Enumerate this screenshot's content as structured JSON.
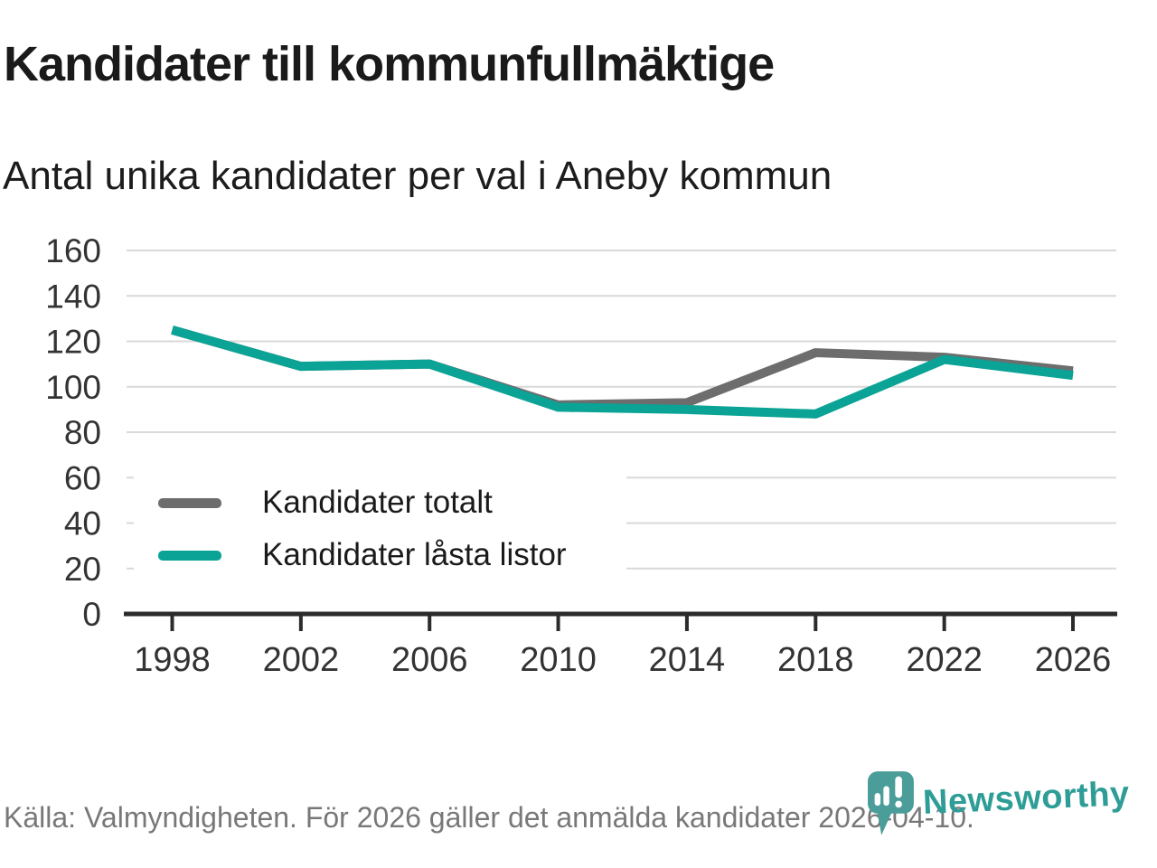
{
  "header": {
    "title": "Kandidater till kommunfullmäktige",
    "subtitle": "Antal unika kandidater per val i Aneby kommun"
  },
  "legend": {
    "items": [
      {
        "label": "Kandidater totalt",
        "color": "#6d6d6d"
      },
      {
        "label": "Kandidater låsta listor",
        "color": "#0aa396"
      }
    ]
  },
  "footer": {
    "source": "Källa: Valmyndigheten. För 2026 gäller det anmälda kandidater 2026-04-10.",
    "brand": "Newsworthy"
  },
  "colors": {
    "total_line": "#6d6d6d",
    "locked_line": "#0aa396",
    "grid": "#d9d9d9",
    "axis": "#2b2b2b",
    "axis_text": "#333333",
    "title_text": "#1a1a1a",
    "muted_text": "#787878",
    "brand_icon": "#4a9d99",
    "brand_text": "#2f9d97"
  },
  "chart_data": {
    "type": "line",
    "title": "Kandidater till kommunfullmäktige",
    "subtitle": "Antal unika kandidater per val i Aneby kommun",
    "x": [
      1998,
      2002,
      2006,
      2010,
      2014,
      2018,
      2022,
      2026
    ],
    "series": [
      {
        "name": "Kandidater totalt",
        "color": "#6d6d6d",
        "values": [
          125,
          109,
          110,
          92,
          93,
          115,
          113,
          107
        ]
      },
      {
        "name": "Kandidater låsta listor",
        "color": "#0aa396",
        "values": [
          125,
          109,
          110,
          91,
          90,
          88,
          112,
          105
        ]
      }
    ],
    "xlabel": "",
    "ylabel": "",
    "ylim": [
      0,
      160
    ],
    "yticks": [
      0,
      20,
      40,
      60,
      80,
      100,
      120,
      140,
      160
    ],
    "grid": true,
    "legend_position": "inside-bottom-left",
    "source": "Källa: Valmyndigheten. För 2026 gäller det anmälda kandidater 2026-04-10."
  }
}
